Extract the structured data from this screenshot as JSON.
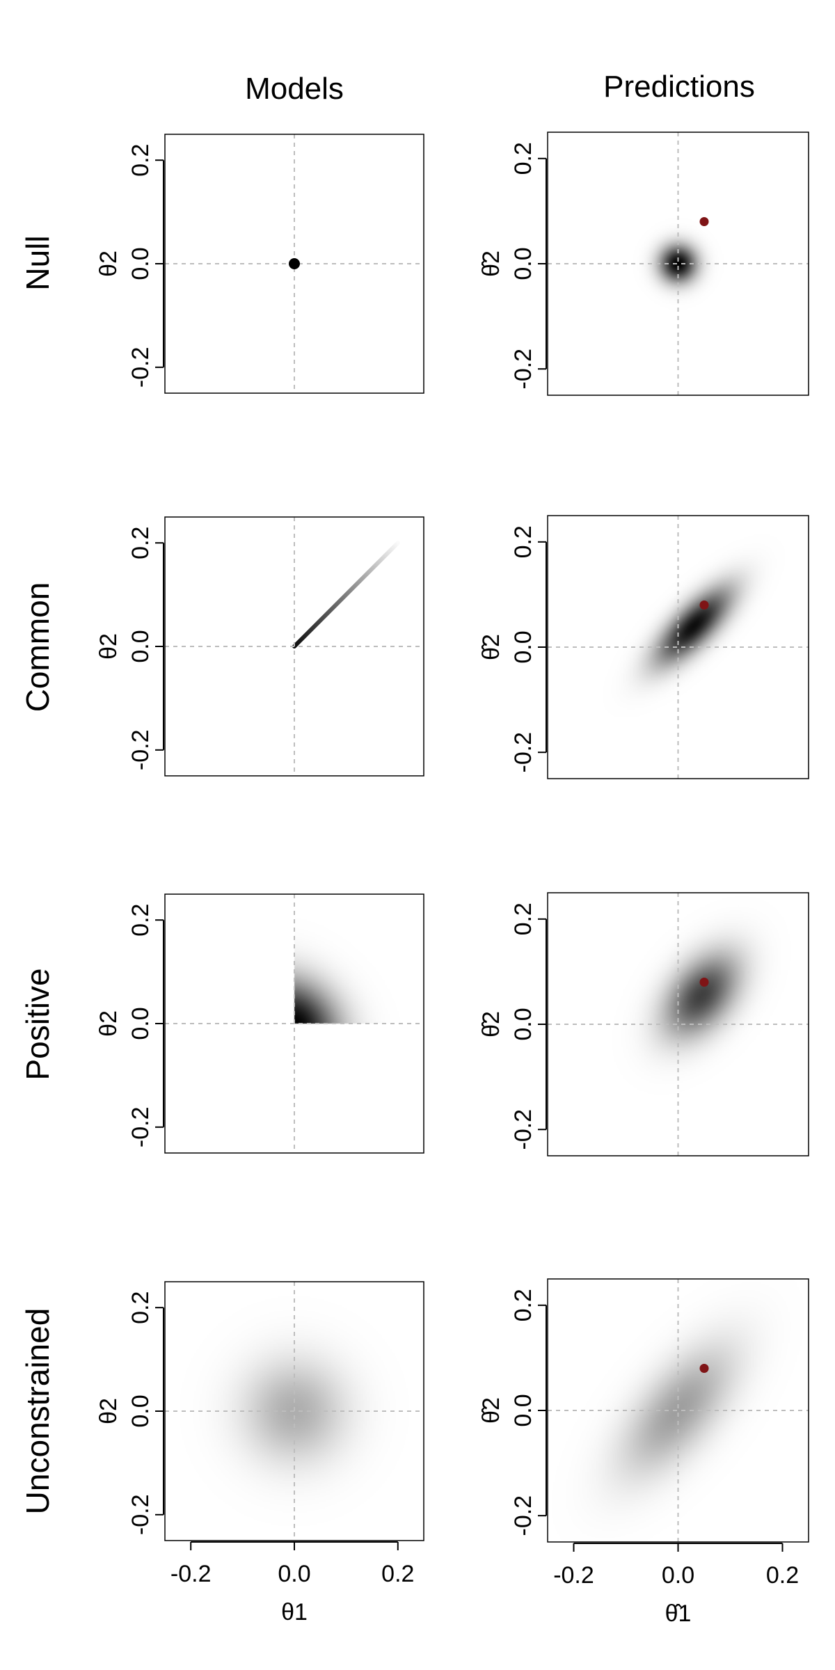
{
  "figure": {
    "column_titles": [
      "Models",
      "Predictions"
    ],
    "row_labels": [
      "Null",
      "Common",
      "Positive",
      "Unconstrained"
    ]
  },
  "axis": {
    "range": [
      -0.25,
      0.25
    ],
    "ticks": [
      -0.2,
      0.0,
      0.2
    ],
    "tick_labels": [
      "-0.2",
      "0.0",
      "0.2"
    ],
    "model_xlabel": "θ1",
    "model_ylabel": "θ2",
    "prediction_xlabel": "θ̂1",
    "prediction_ylabel": "θ̂2"
  },
  "colors": {
    "density": "#000000",
    "observed_point": "#7f1416",
    "reference_lines": "#bdbdbd"
  },
  "chart_data": [
    {
      "type": "heatmap",
      "row": "Null",
      "column": "Models",
      "distribution": "point-mass",
      "point": [
        0.0,
        0.0
      ],
      "xlim": [
        -0.25,
        0.25
      ],
      "ylim": [
        -0.25,
        0.25
      ],
      "reference_lines": [
        0,
        0
      ]
    },
    {
      "type": "heatmap",
      "row": "Null",
      "column": "Predictions",
      "distribution": "gaussian",
      "center": [
        0.0,
        0.0
      ],
      "sd": [
        0.025,
        0.025
      ],
      "corr": 0.0,
      "peak": 1.0,
      "observed": [
        0.05,
        0.08
      ],
      "xlim": [
        -0.25,
        0.25
      ],
      "ylim": [
        -0.25,
        0.25
      ],
      "reference_lines": [
        0,
        0
      ]
    },
    {
      "type": "heatmap",
      "row": "Common",
      "column": "Models",
      "distribution": "diagonal-ray",
      "from": [
        0.0,
        0.0
      ],
      "to": [
        0.2,
        0.2
      ],
      "xlim": [
        -0.25,
        0.25
      ],
      "ylim": [
        -0.25,
        0.25
      ],
      "reference_lines": [
        0,
        0
      ]
    },
    {
      "type": "heatmap",
      "row": "Common",
      "column": "Predictions",
      "distribution": "gaussian",
      "center": [
        0.03,
        0.04
      ],
      "sd": [
        0.05,
        0.05
      ],
      "corr": 0.75,
      "peak": 0.95,
      "observed": [
        0.05,
        0.08
      ],
      "xlim": [
        -0.25,
        0.25
      ],
      "ylim": [
        -0.25,
        0.25
      ],
      "reference_lines": [
        0,
        0
      ]
    },
    {
      "type": "heatmap",
      "row": "Positive",
      "column": "Models",
      "distribution": "truncated-gaussian",
      "truncate": "positive-quadrant",
      "center": [
        0.0,
        0.0
      ],
      "sd": [
        0.06,
        0.06
      ],
      "corr": -0.2,
      "peak": 1.0,
      "xlim": [
        -0.25,
        0.25
      ],
      "ylim": [
        -0.25,
        0.25
      ],
      "reference_lines": [
        0,
        0
      ]
    },
    {
      "type": "heatmap",
      "row": "Positive",
      "column": "Predictions",
      "distribution": "gaussian",
      "center": [
        0.045,
        0.055
      ],
      "sd": [
        0.05,
        0.055
      ],
      "corr": 0.45,
      "peak": 0.75,
      "observed": [
        0.05,
        0.08
      ],
      "xlim": [
        -0.25,
        0.25
      ],
      "ylim": [
        -0.25,
        0.25
      ],
      "reference_lines": [
        0,
        0
      ]
    },
    {
      "type": "heatmap",
      "row": "Unconstrained",
      "column": "Models",
      "distribution": "gaussian",
      "center": [
        0.0,
        0.0
      ],
      "sd": [
        0.07,
        0.07
      ],
      "corr": 0.0,
      "peak": 0.32,
      "xlim": [
        -0.25,
        0.25
      ],
      "ylim": [
        -0.25,
        0.25
      ],
      "reference_lines": [
        0,
        0
      ]
    },
    {
      "type": "heatmap",
      "row": "Unconstrained",
      "column": "Predictions",
      "distribution": "gaussian",
      "center": [
        0.0,
        0.0
      ],
      "sd": [
        0.075,
        0.085
      ],
      "corr": 0.65,
      "peak": 0.38,
      "observed": [
        0.05,
        0.08
      ],
      "xlim": [
        -0.25,
        0.25
      ],
      "ylim": [
        -0.25,
        0.25
      ],
      "reference_lines": [
        0,
        0
      ]
    }
  ]
}
